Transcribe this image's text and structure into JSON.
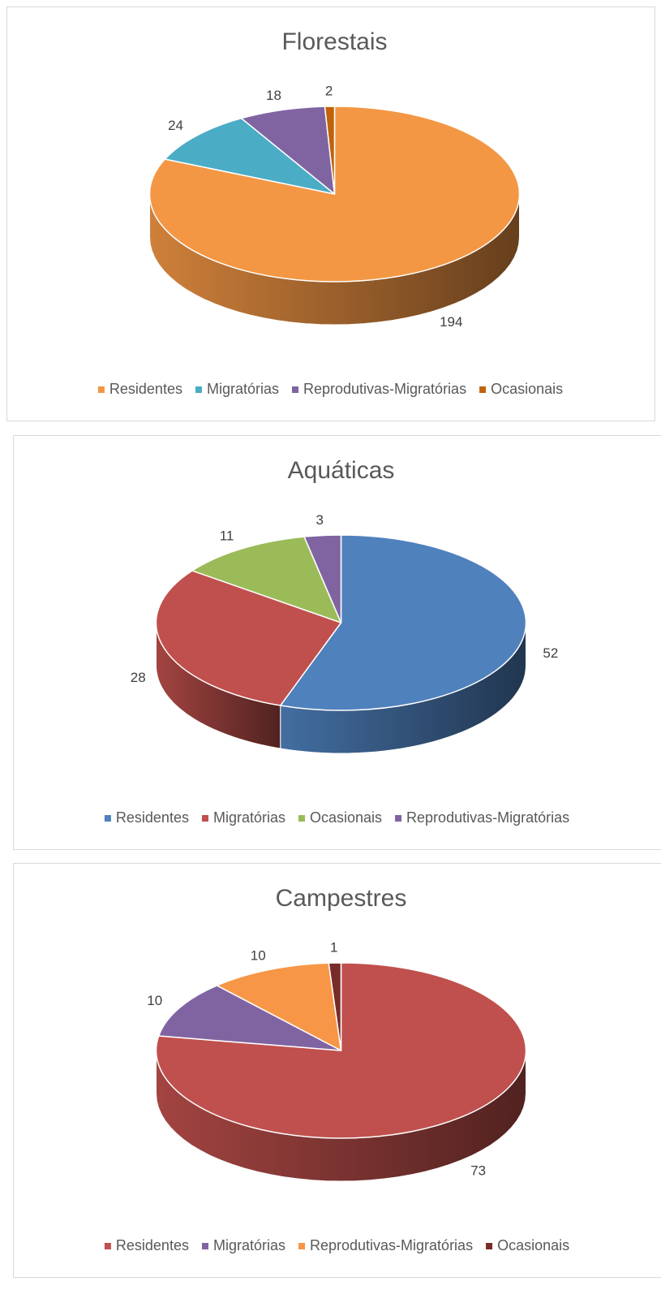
{
  "chart_data": [
    {
      "type": "pie",
      "title": "Florestais",
      "categories": [
        "Residentes",
        "Migratórias",
        "Reprodutivas-Migratórias",
        "Ocasionais"
      ],
      "values": [
        194,
        24,
        18,
        2
      ],
      "colors": [
        "#f39744",
        "#4bacc6",
        "#8064a2",
        "#c0620c"
      ],
      "legend": "bottom"
    },
    {
      "type": "pie",
      "title": "Aquáticas",
      "categories": [
        "Residentes",
        "Migratórias",
        "Ocasionais",
        "Reprodutivas-Migratórias"
      ],
      "values": [
        52,
        28,
        11,
        3
      ],
      "colors": [
        "#4f81bd",
        "#c0504d",
        "#9bbb59",
        "#8064a2"
      ],
      "legend": "bottom"
    },
    {
      "type": "pie",
      "title": "Campestres",
      "categories": [
        "Residentes",
        "Migratórias",
        "Reprodutivas-Migratórias",
        "Ocasionais"
      ],
      "values": [
        73,
        10,
        10,
        1
      ],
      "colors": [
        "#c0504d",
        "#8064a2",
        "#f79646",
        "#772c2a"
      ],
      "legend": "bottom"
    }
  ]
}
